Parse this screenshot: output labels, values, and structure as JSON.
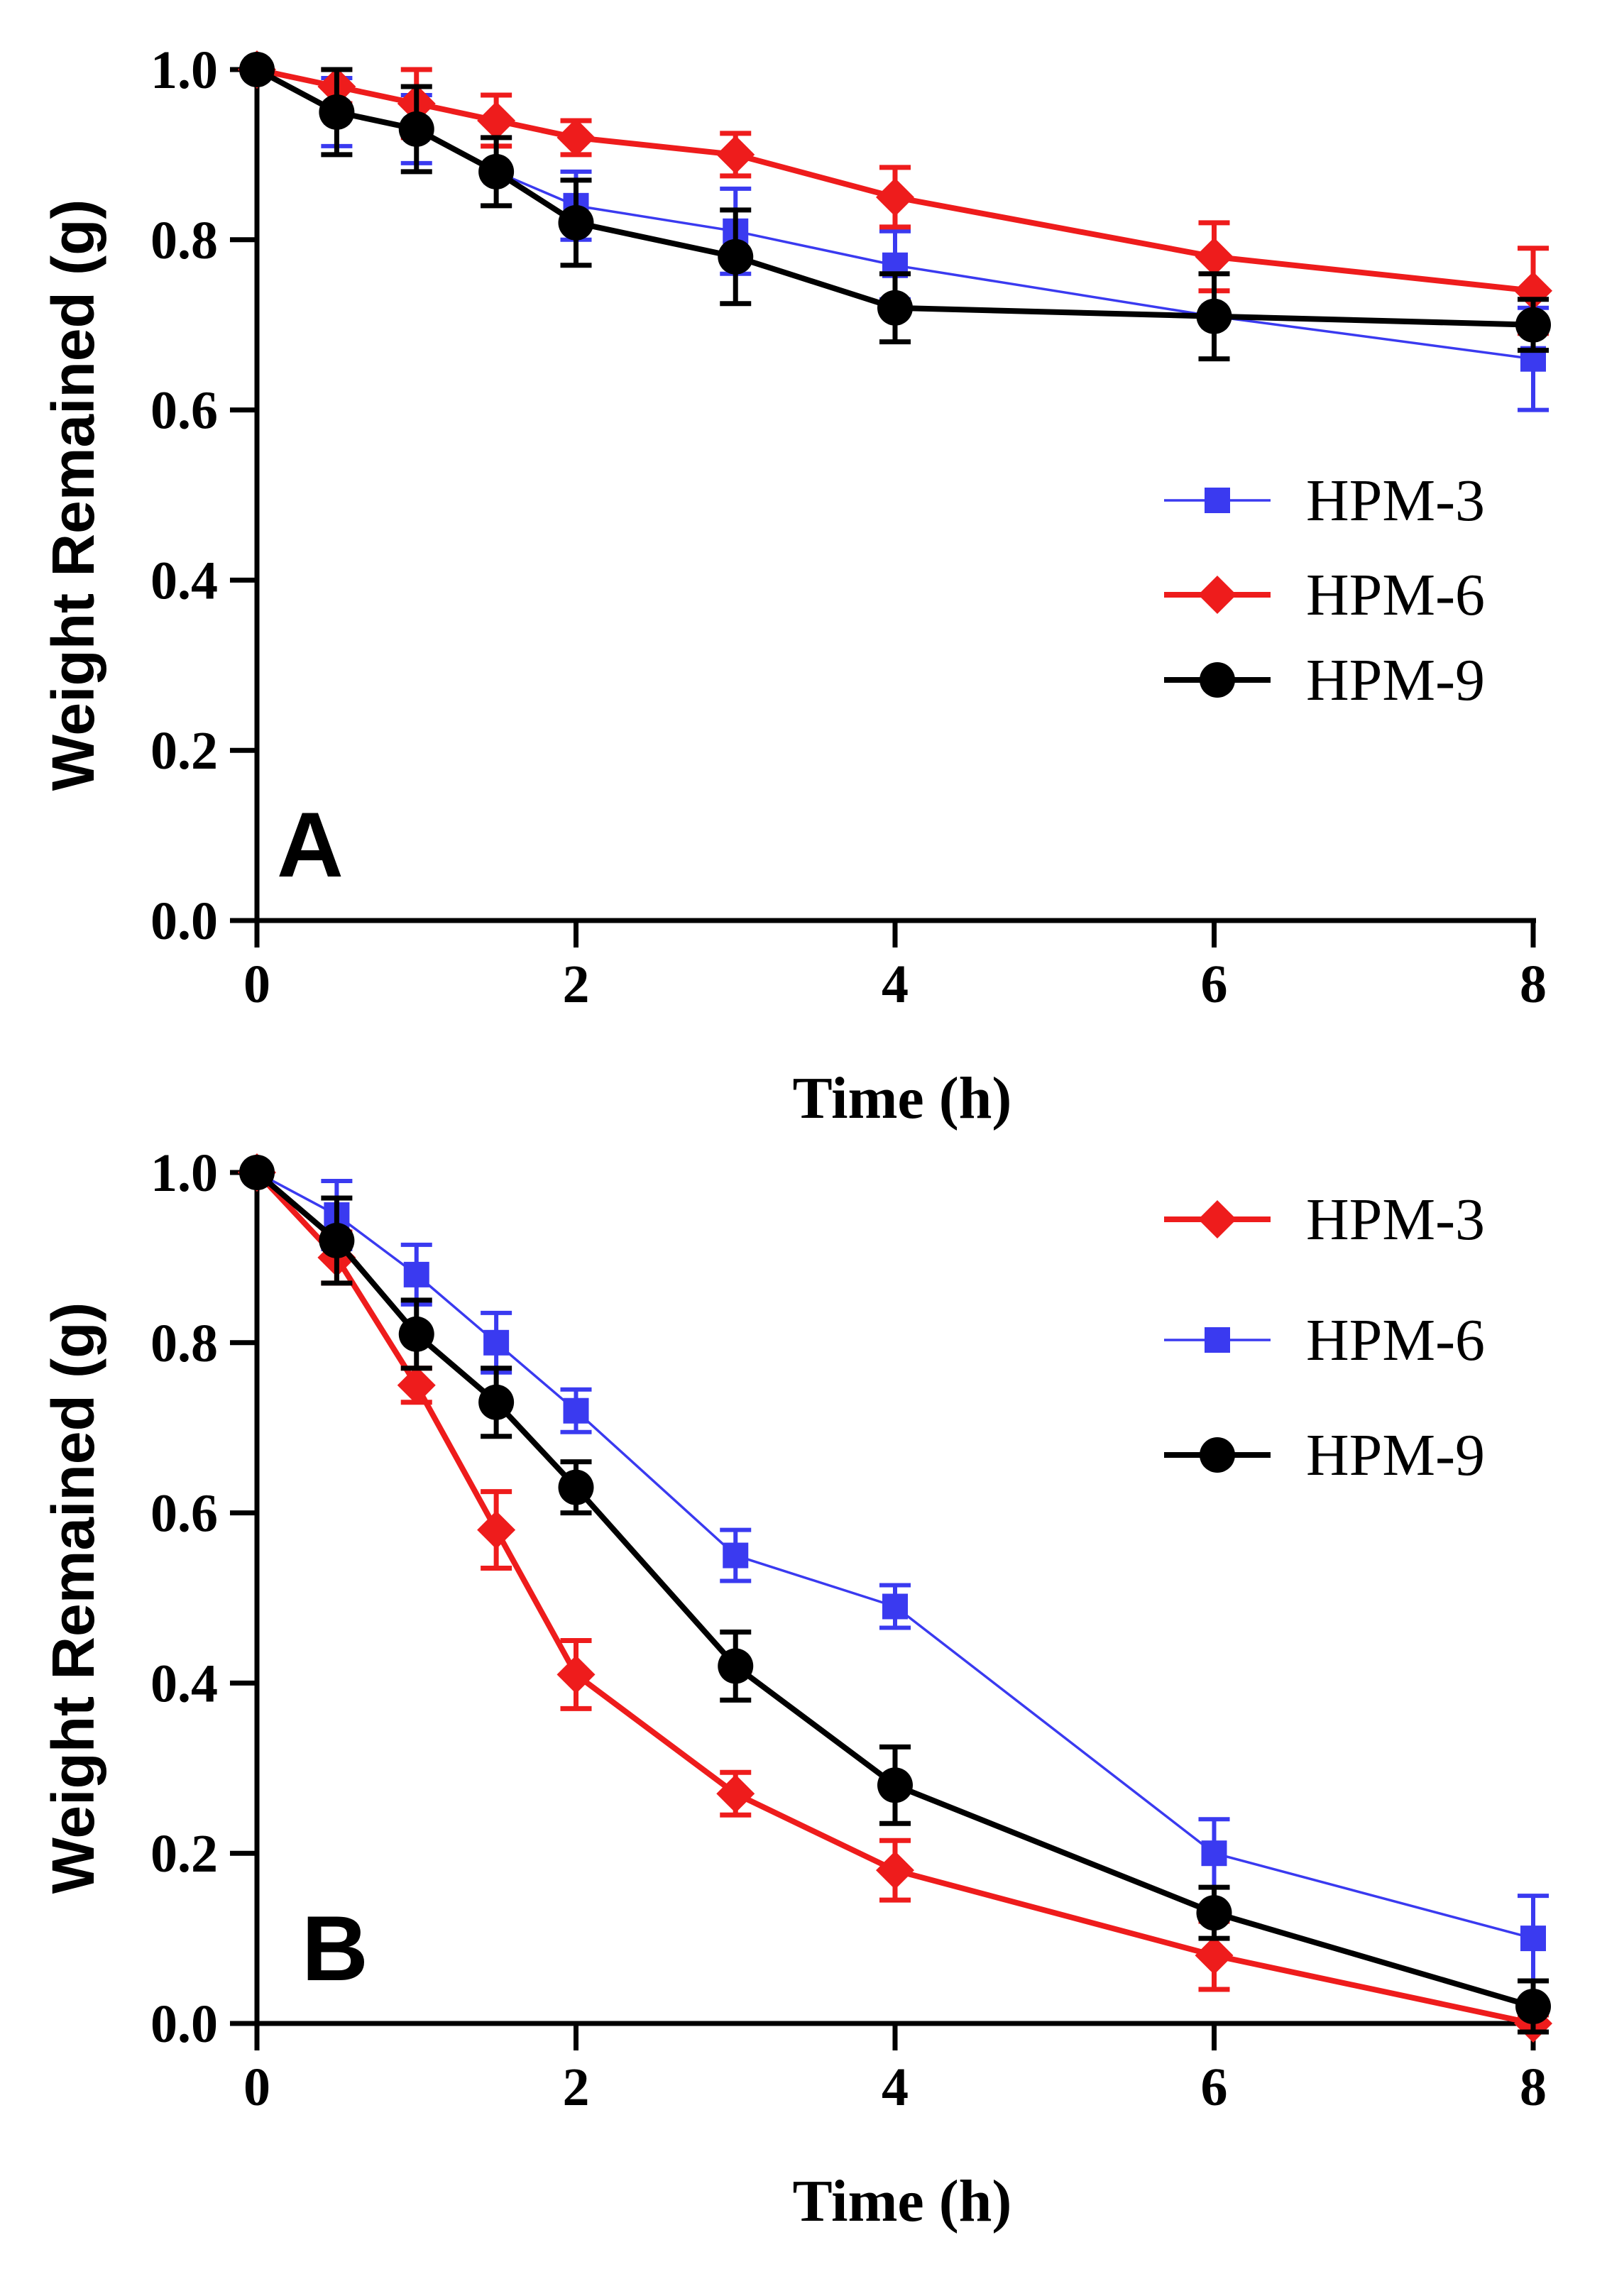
{
  "chart_data": [
    {
      "type": "line",
      "panel_label": "A",
      "xlabel": "Time (h)",
      "ylabel": "Weight Remained (g)",
      "xlim": [
        0,
        8
      ],
      "ylim": [
        0,
        1.0
      ],
      "xticks": [
        "0",
        "2",
        "4",
        "6",
        "8"
      ],
      "yticks": [
        "0.0",
        "0.2",
        "0.4",
        "0.6",
        "0.8",
        "1.0"
      ],
      "legend_position": "right",
      "x": [
        0,
        0.5,
        1,
        1.5,
        2,
        3,
        4,
        6,
        8
      ],
      "series": [
        {
          "name": "HPM-3",
          "color": "#3a3af0",
          "marker": "square",
          "values": [
            1.0,
            0.95,
            0.93,
            0.88,
            0.84,
            0.81,
            0.77,
            0.71,
            0.66
          ],
          "errors": [
            0,
            0.04,
            0.04,
            0.04,
            0.04,
            0.05,
            0.04,
            0.05,
            0.06
          ]
        },
        {
          "name": "HPM-6",
          "color": "#ee1c1c",
          "marker": "diamond",
          "values": [
            1.0,
            0.98,
            0.96,
            0.94,
            0.92,
            0.9,
            0.85,
            0.78,
            0.74
          ],
          "errors": [
            0,
            0.02,
            0.04,
            0.03,
            0.02,
            0.025,
            0.035,
            0.04,
            0.05
          ]
        },
        {
          "name": "HPM-9",
          "color": "#000000",
          "marker": "circle",
          "values": [
            1.0,
            0.95,
            0.93,
            0.88,
            0.82,
            0.78,
            0.72,
            0.71,
            0.7
          ],
          "errors": [
            0,
            0.05,
            0.05,
            0.04,
            0.05,
            0.055,
            0.04,
            0.05,
            0.03
          ]
        }
      ]
    },
    {
      "type": "line",
      "panel_label": "B",
      "xlabel": "Time (h)",
      "ylabel": "Weight Remained (g)",
      "xlim": [
        0,
        8
      ],
      "ylim": [
        0,
        1.0
      ],
      "xticks": [
        "0",
        "2",
        "4",
        "6",
        "8"
      ],
      "yticks": [
        "0.0",
        "0.2",
        "0.4",
        "0.6",
        "0.8",
        "1.0"
      ],
      "legend_position": "top-right",
      "x": [
        0,
        0.5,
        1,
        1.5,
        2,
        3,
        4,
        6,
        8
      ],
      "series": [
        {
          "name": "HPM-3",
          "color": "#ee1c1c",
          "marker": "diamond",
          "values": [
            1.0,
            0.9,
            0.75,
            0.58,
            0.41,
            0.27,
            0.18,
            0.08,
            0.0
          ],
          "errors": [
            0,
            0.03,
            0.02,
            0.045,
            0.04,
            0.025,
            0.035,
            0.04,
            0.01
          ]
        },
        {
          "name": "HPM-6",
          "color": "#3a3af0",
          "marker": "square",
          "values": [
            1.0,
            0.95,
            0.88,
            0.8,
            0.72,
            0.55,
            0.49,
            0.2,
            0.1
          ],
          "errors": [
            0,
            0.04,
            0.035,
            0.035,
            0.025,
            0.03,
            0.025,
            0.04,
            0.05
          ]
        },
        {
          "name": "HPM-9",
          "color": "#000000",
          "marker": "circle",
          "values": [
            1.0,
            0.92,
            0.81,
            0.73,
            0.63,
            0.42,
            0.28,
            0.13,
            0.02
          ],
          "errors": [
            0,
            0.05,
            0.04,
            0.04,
            0.03,
            0.04,
            0.045,
            0.03,
            0.03
          ]
        }
      ]
    }
  ]
}
